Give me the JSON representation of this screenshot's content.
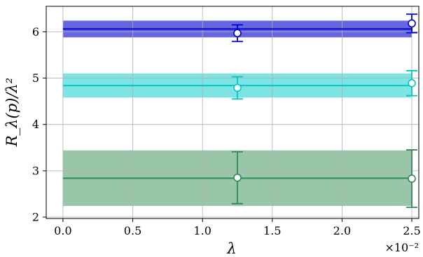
{
  "chart_data": {
    "type": "scatter",
    "xlabel": "λ",
    "ylabel": "R_λ(p)/λ²",
    "x_multiplier": "×10⁻²",
    "xlim": [
      -0.0012,
      0.0255
    ],
    "ylim": [
      1.97,
      6.55
    ],
    "xticks": [
      0.0,
      0.005,
      0.01,
      0.015,
      0.02,
      0.025
    ],
    "xtick_labels": [
      "0.0",
      "0.5",
      "1.0",
      "1.5",
      "2.0",
      "2.5"
    ],
    "yticks": [
      2,
      3,
      4,
      5,
      6
    ],
    "ytick_labels": [
      "2",
      "3",
      "4",
      "5",
      "6"
    ],
    "grid": true,
    "series": [
      {
        "color": "#0000cc",
        "band_color": "#6666e0",
        "fit": 6.06,
        "fit_low": 5.88,
        "fit_high": 6.24,
        "fit_xrange": [
          0.0,
          0.025
        ],
        "points": [
          {
            "x": 0.0125,
            "y": 5.97,
            "err": 0.18
          },
          {
            "x": 0.025,
            "y": 6.18,
            "err": 0.2
          }
        ]
      },
      {
        "color": "#00c8c8",
        "band_color": "#7ee3e3",
        "fit": 4.84,
        "fit_low": 4.58,
        "fit_high": 5.1,
        "fit_xrange": [
          0.0,
          0.025
        ],
        "points": [
          {
            "x": 0.0125,
            "y": 4.79,
            "err": 0.24
          },
          {
            "x": 0.025,
            "y": 4.89,
            "err": 0.27
          }
        ]
      },
      {
        "color": "#2e8b57",
        "band_color": "#99c5a8",
        "fit": 2.84,
        "fit_low": 2.24,
        "fit_high": 3.44,
        "fit_xrange": [
          0.0,
          0.025
        ],
        "points": [
          {
            "x": 0.0125,
            "y": 2.85,
            "err": 0.56
          },
          {
            "x": 0.025,
            "y": 2.83,
            "err": 0.62
          }
        ]
      }
    ]
  }
}
